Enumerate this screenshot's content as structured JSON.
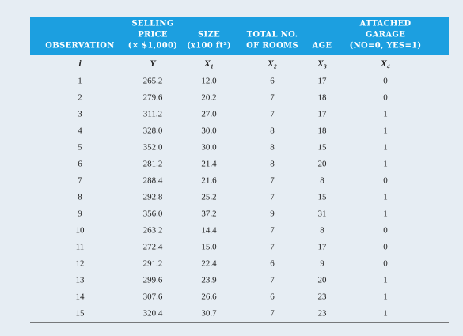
{
  "table": {
    "columns": [
      [
        "OBSERVATION"
      ],
      [
        "SELLING",
        "PRICE",
        "(× $1,000)"
      ],
      [
        "SIZE",
        "(x100 ft²)"
      ],
      [
        "TOTAL NO.",
        "OF ROOMS"
      ],
      [
        "AGE"
      ],
      [
        "ATTACHED",
        "GARAGE",
        "(NO=0, YES=1)"
      ]
    ],
    "symbols": [
      "i",
      "Y",
      "X₁",
      "X₂",
      "X₃",
      "X₄"
    ],
    "rows": [
      [
        "1",
        "265.2",
        "12.0",
        "6",
        "17",
        "0"
      ],
      [
        "2",
        "279.6",
        "20.2",
        "7",
        "18",
        "0"
      ],
      [
        "3",
        "311.2",
        "27.0",
        "7",
        "17",
        "1"
      ],
      [
        "4",
        "328.0",
        "30.0",
        "8",
        "18",
        "1"
      ],
      [
        "5",
        "352.0",
        "30.0",
        "8",
        "15",
        "1"
      ],
      [
        "6",
        "281.2",
        "21.4",
        "8",
        "20",
        "1"
      ],
      [
        "7",
        "288.4",
        "21.6",
        "7",
        "8",
        "0"
      ],
      [
        "8",
        "292.8",
        "25.2",
        "7",
        "15",
        "1"
      ],
      [
        "9",
        "356.0",
        "37.2",
        "9",
        "31",
        "1"
      ],
      [
        "10",
        "263.2",
        "14.4",
        "7",
        "8",
        "0"
      ],
      [
        "11",
        "272.4",
        "15.0",
        "7",
        "17",
        "0"
      ],
      [
        "12",
        "291.2",
        "22.4",
        "6",
        "9",
        "0"
      ],
      [
        "13",
        "299.6",
        "23.9",
        "7",
        "20",
        "1"
      ],
      [
        "14",
        "307.6",
        "26.6",
        "6",
        "23",
        "1"
      ],
      [
        "15",
        "320.4",
        "30.7",
        "7",
        "23",
        "1"
      ]
    ]
  }
}
